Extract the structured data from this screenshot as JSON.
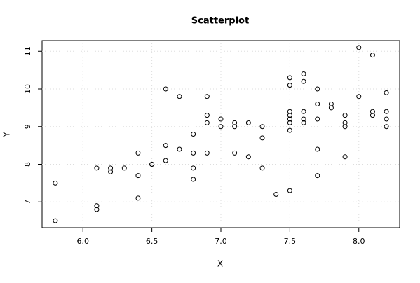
{
  "chart_data": {
    "type": "scatter",
    "title": "Scatterplot",
    "x_label": "X",
    "y_label": "Y",
    "x": [
      5.8,
      5.8,
      6.1,
      6.1,
      6.1,
      6.2,
      6.2,
      6.3,
      6.4,
      6.4,
      6.4,
      6.5,
      6.5,
      6.6,
      6.6,
      6.6,
      6.7,
      6.7,
      6.8,
      6.8,
      6.8,
      6.8,
      6.9,
      6.9,
      6.9,
      6.9,
      7.0,
      7.0,
      7.1,
      7.1,
      7.1,
      7.2,
      7.2,
      7.3,
      7.3,
      7.3,
      7.4,
      7.5,
      7.5,
      7.5,
      7.5,
      7.5,
      7.5,
      7.5,
      7.5,
      7.6,
      7.6,
      7.6,
      7.6,
      7.6,
      7.7,
      7.7,
      7.7,
      7.7,
      7.7,
      7.8,
      7.8,
      7.9,
      7.9,
      7.9,
      7.9,
      8.0,
      8.0,
      8.1,
      8.1,
      8.1,
      8.2,
      8.2,
      8.2,
      8.2
    ],
    "y": [
      7.5,
      6.5,
      7.9,
      6.9,
      6.8,
      7.9,
      7.8,
      7.9,
      8.3,
      7.7,
      7.1,
      8.0,
      8.0,
      10.0,
      8.5,
      8.1,
      9.8,
      8.4,
      8.8,
      8.3,
      7.9,
      7.6,
      9.8,
      9.3,
      9.1,
      8.3,
      9.2,
      9.0,
      9.1,
      9.0,
      8.3,
      9.1,
      8.2,
      9.0,
      8.7,
      7.9,
      7.2,
      10.3,
      10.1,
      9.4,
      9.3,
      9.2,
      9.1,
      8.9,
      7.3,
      10.4,
      10.2,
      9.4,
      9.2,
      9.1,
      10.0,
      9.6,
      9.2,
      8.4,
      7.7,
      9.6,
      9.5,
      9.3,
      9.1,
      9.0,
      8.2,
      11.1,
      9.8,
      10.9,
      9.4,
      9.3,
      9.9,
      9.4,
      9.2,
      9.0
    ],
    "xlim": [
      5.704,
      8.296
    ],
    "ylim": [
      6.316,
      11.284
    ],
    "xticks": [
      {
        "value": 6,
        "label": "6.0"
      },
      6.5,
      {
        "value": 7,
        "label": "7.0"
      },
      7.5,
      {
        "value": 8,
        "label": "8.0"
      }
    ],
    "yticks": [
      7,
      8,
      9,
      10,
      11
    ],
    "grid": true,
    "color": "#000000"
  }
}
